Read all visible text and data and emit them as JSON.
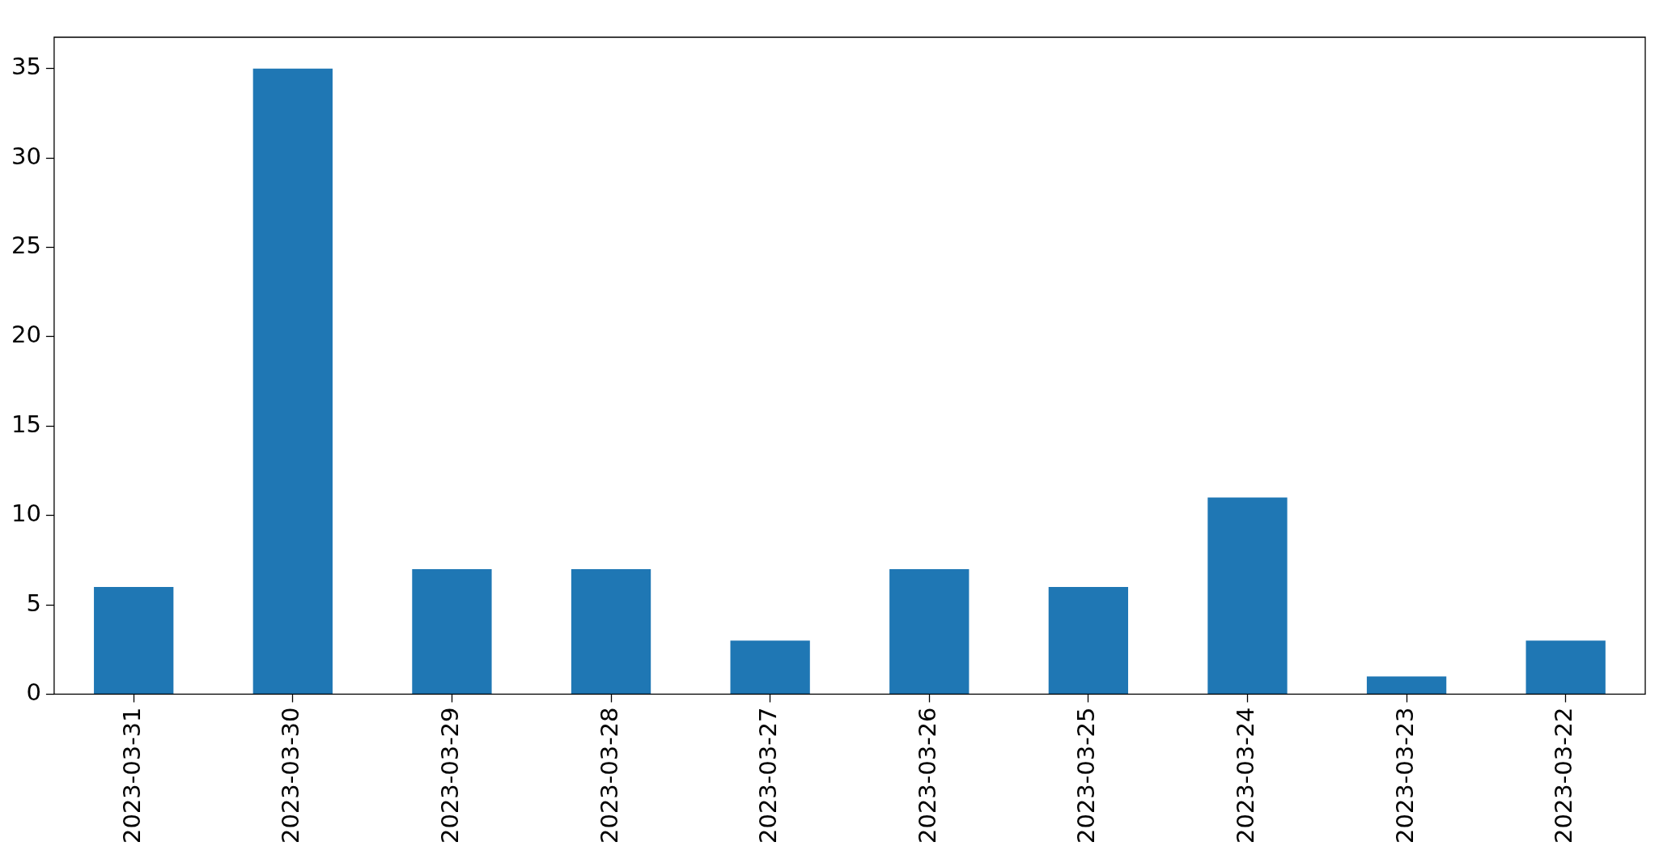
{
  "chart_data": {
    "type": "bar",
    "categories": [
      "2023-03-31",
      "2023-03-30",
      "2023-03-29",
      "2023-03-28",
      "2023-03-27",
      "2023-03-26",
      "2023-03-25",
      "2023-03-24",
      "2023-03-23",
      "2023-03-22"
    ],
    "values": [
      6,
      35,
      7,
      7,
      3,
      7,
      6,
      11,
      1,
      3
    ],
    "color": "#1f77b4",
    "ylim": [
      0,
      36.75
    ],
    "yticks": [
      0,
      5,
      10,
      15,
      20,
      25,
      30,
      35
    ],
    "grid": false,
    "legend": false
  }
}
